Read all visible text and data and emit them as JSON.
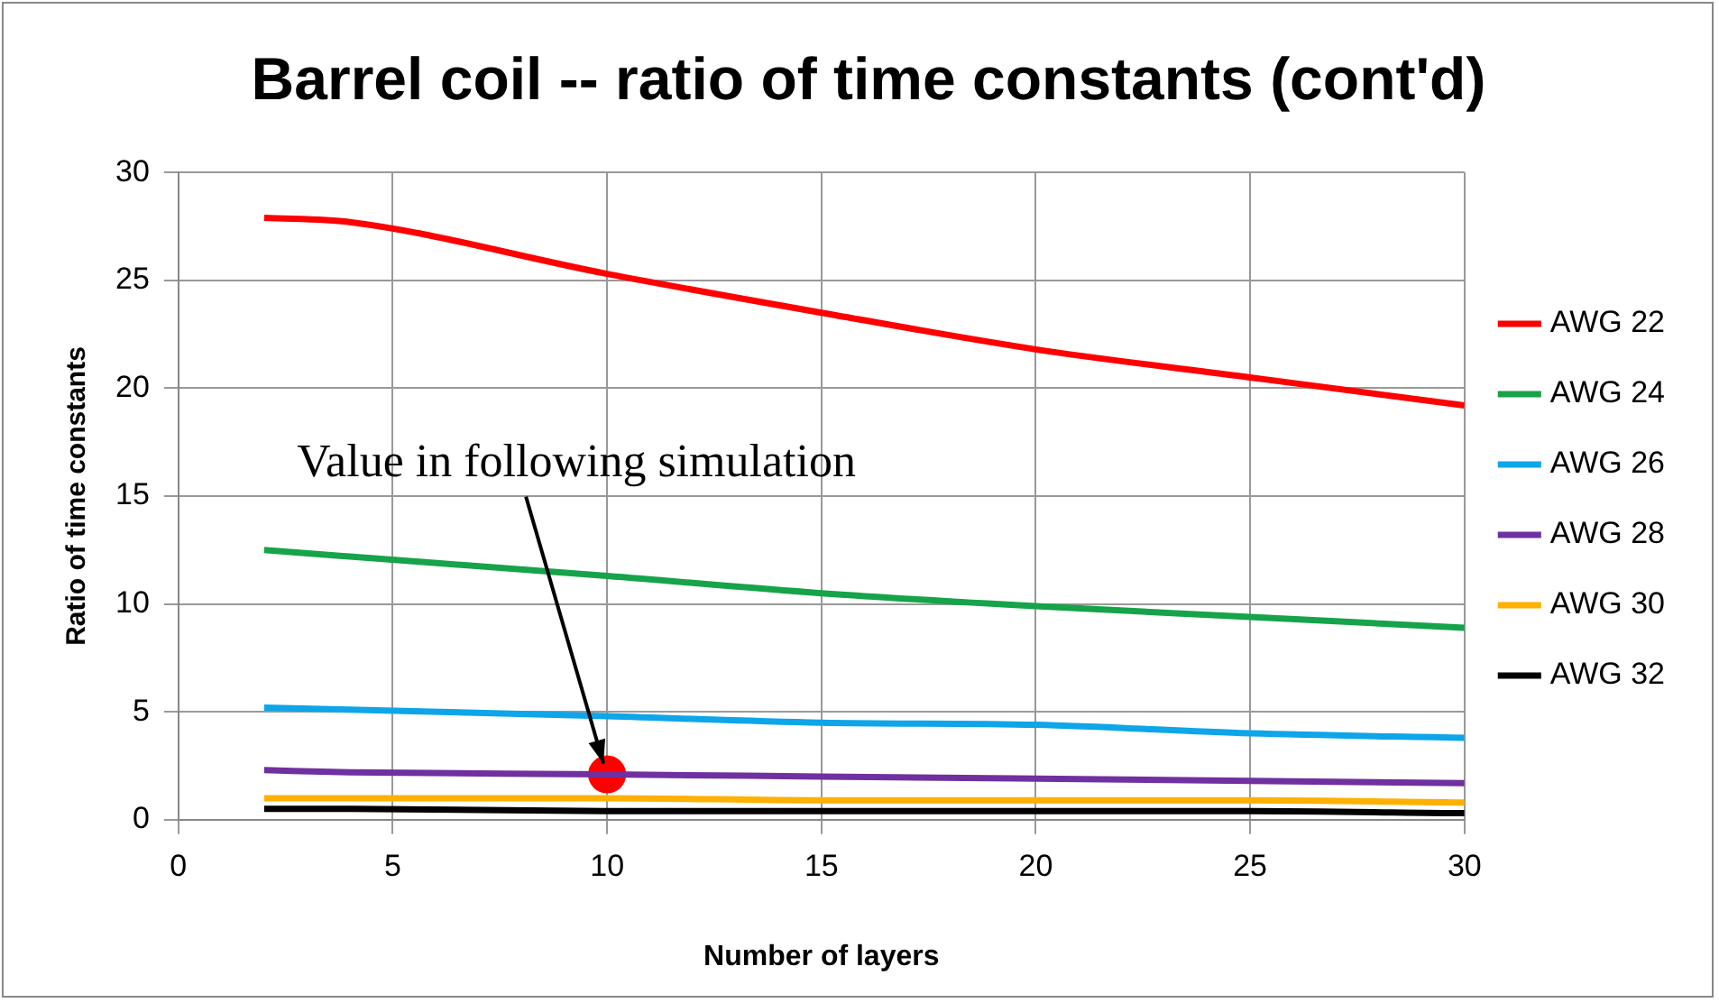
{
  "chart_data": {
    "type": "line",
    "title": "Barrel coil -- ratio of time constants (cont'd)",
    "xlabel": "Number of layers",
    "ylabel": "Ratio of time constants",
    "x": [
      2,
      4,
      10,
      15,
      20,
      25,
      30
    ],
    "series": [
      {
        "name": "AWG 22",
        "color": "#ff0000",
        "values": [
          27.9,
          27.7,
          25.3,
          23.5,
          21.8,
          20.5,
          19.2
        ]
      },
      {
        "name": "AWG 24",
        "color": "#16a34a",
        "values": [
          12.5,
          12.2,
          11.3,
          10.5,
          9.9,
          9.4,
          8.9
        ]
      },
      {
        "name": "AWG 26",
        "color": "#0ea5e9",
        "values": [
          5.2,
          5.1,
          4.8,
          4.5,
          4.4,
          4.0,
          3.8
        ]
      },
      {
        "name": "AWG 28",
        "color": "#7030a0",
        "values": [
          2.3,
          2.2,
          2.1,
          2.0,
          1.9,
          1.8,
          1.7
        ]
      },
      {
        "name": "AWG 30",
        "color": "#ffb000",
        "values": [
          1.0,
          1.0,
          1.0,
          0.9,
          0.9,
          0.9,
          0.8
        ]
      },
      {
        "name": "AWG 32",
        "color": "#000000",
        "values": [
          0.5,
          0.5,
          0.4,
          0.4,
          0.4,
          0.4,
          0.3
        ]
      },
      {
        "type": "scatter",
        "color": "#ff0000",
        "x": [
          10
        ],
        "values": [
          2.1
        ],
        "marker": "circle"
      }
    ],
    "annotations": [
      {
        "text": "Value in following simulation",
        "x": 10,
        "y": 2.1
      }
    ],
    "xlim": [
      0,
      30
    ],
    "xticks": [
      0,
      5,
      10,
      15,
      20,
      25,
      30
    ],
    "ylim": [
      0,
      30
    ],
    "yticks": [
      0,
      5,
      10,
      15,
      20,
      25,
      30
    ],
    "grid": true,
    "legend": "right",
    "marker": "none",
    "line_style": "solid"
  }
}
